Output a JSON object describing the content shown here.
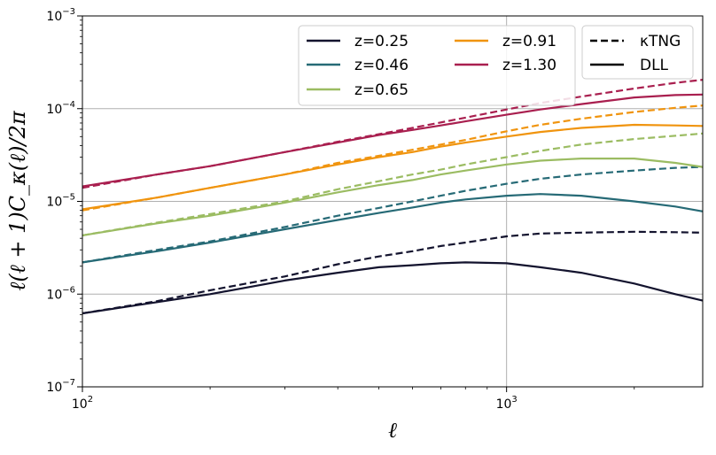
{
  "chart_data": {
    "type": "line",
    "xlabel": "ℓ",
    "ylabel": "ℓ(ℓ + 1)C_κ(ℓ)/2π",
    "xscale": "log",
    "yscale": "log",
    "xlim": [
      100,
      2900
    ],
    "ylim": [
      1e-07,
      0.001
    ],
    "grid": "major",
    "x_ticks": [
      {
        "value": 100,
        "base": "10",
        "exp": "2"
      },
      {
        "value": 1000,
        "base": "10",
        "exp": "3"
      }
    ],
    "y_ticks": [
      {
        "value": 1e-07,
        "base": "10",
        "exp": "−7"
      },
      {
        "value": 1e-06,
        "base": "10",
        "exp": "−6"
      },
      {
        "value": 1e-05,
        "base": "10",
        "exp": "−5"
      },
      {
        "value": 0.0001,
        "base": "10",
        "exp": "−4"
      },
      {
        "value": 0.001,
        "base": "10",
        "exp": "−3"
      }
    ],
    "legend_position": "top-right",
    "legend_redshift": [
      {
        "label": "z=0.25",
        "color": "#13132e"
      },
      {
        "label": "z=0.46",
        "color": "#266a76"
      },
      {
        "label": "z=0.65",
        "color": "#9bbc62"
      },
      {
        "label": "z=0.91",
        "color": "#f0940e"
      },
      {
        "label": "z=1.30",
        "color": "#a91f4f"
      }
    ],
    "legend_style": [
      {
        "label": "κTNG",
        "dash": "dashed"
      },
      {
        "label": "DLL",
        "dash": "solid"
      }
    ],
    "series": [
      {
        "z": "0.25",
        "model": "κTNG",
        "color": "#13132e",
        "dash": "dashed",
        "x": [
          100,
          150,
          200,
          300,
          400,
          500,
          600,
          700,
          800,
          1000,
          1200,
          1500,
          2000,
          2500,
          2900
        ],
        "y": [
          6.2e-07,
          8.4e-07,
          1.1e-06,
          1.55e-06,
          2.1e-06,
          2.55e-06,
          2.9e-06,
          3.3e-06,
          3.6e-06,
          4.2e-06,
          4.5e-06,
          4.6e-06,
          4.7e-06,
          4.65e-06,
          4.6e-06
        ]
      },
      {
        "z": "0.25",
        "model": "DLL",
        "color": "#13132e",
        "dash": "solid",
        "x": [
          100,
          150,
          200,
          300,
          400,
          500,
          600,
          700,
          800,
          1000,
          1200,
          1500,
          2000,
          2500,
          2900
        ],
        "y": [
          6.2e-07,
          8.2e-07,
          1e-06,
          1.4e-06,
          1.7e-06,
          1.95e-06,
          2.05e-06,
          2.15e-06,
          2.2e-06,
          2.15e-06,
          1.95e-06,
          1.7e-06,
          1.3e-06,
          1e-06,
          8.5e-07
        ]
      },
      {
        "z": "0.46",
        "model": "κTNG",
        "color": "#266a76",
        "dash": "dashed",
        "x": [
          100,
          150,
          200,
          300,
          400,
          500,
          600,
          700,
          800,
          1000,
          1200,
          1500,
          2000,
          2500,
          2900
        ],
        "y": [
          2.2e-06,
          3e-06,
          3.7e-06,
          5.3e-06,
          7e-06,
          8.5e-06,
          1e-05,
          1.15e-05,
          1.3e-05,
          1.55e-05,
          1.75e-05,
          1.95e-05,
          2.15e-05,
          2.3e-05,
          2.35e-05
        ]
      },
      {
        "z": "0.46",
        "model": "DLL",
        "color": "#266a76",
        "dash": "solid",
        "x": [
          100,
          150,
          200,
          300,
          400,
          500,
          600,
          700,
          800,
          1000,
          1200,
          1500,
          2000,
          2500,
          2900
        ],
        "y": [
          2.2e-06,
          2.9e-06,
          3.6e-06,
          5e-06,
          6.3e-06,
          7.5e-06,
          8.6e-06,
          9.7e-06,
          1.05e-05,
          1.15e-05,
          1.2e-05,
          1.15e-05,
          1e-05,
          8.8e-06,
          7.8e-06
        ]
      },
      {
        "z": "0.65",
        "model": "κTNG",
        "color": "#9bbc62",
        "dash": "dashed",
        "x": [
          100,
          150,
          200,
          300,
          400,
          500,
          600,
          700,
          800,
          1000,
          1200,
          1500,
          2000,
          2500,
          2900
        ],
        "y": [
          4.3e-06,
          5.9e-06,
          7.3e-06,
          1e-05,
          1.35e-05,
          1.65e-05,
          1.95e-05,
          2.2e-05,
          2.5e-05,
          3e-05,
          3.5e-05,
          4.1e-05,
          4.7e-05,
          5.1e-05,
          5.4e-05
        ]
      },
      {
        "z": "0.65",
        "model": "DLL",
        "color": "#9bbc62",
        "dash": "solid",
        "x": [
          100,
          150,
          200,
          300,
          400,
          500,
          600,
          700,
          800,
          1000,
          1200,
          1500,
          2000,
          2500,
          2900
        ],
        "y": [
          4.3e-06,
          5.8e-06,
          7e-06,
          9.7e-06,
          1.25e-05,
          1.5e-05,
          1.7e-05,
          1.95e-05,
          2.15e-05,
          2.5e-05,
          2.75e-05,
          2.9e-05,
          2.9e-05,
          2.6e-05,
          2.35e-05
        ]
      },
      {
        "z": "0.91",
        "model": "κTNG",
        "color": "#f0940e",
        "dash": "dashed",
        "x": [
          100,
          150,
          200,
          300,
          400,
          500,
          600,
          700,
          800,
          1000,
          1200,
          1500,
          2000,
          2500,
          2900
        ],
        "y": [
          8e-06,
          1.1e-05,
          1.4e-05,
          1.95e-05,
          2.6e-05,
          3.1e-05,
          3.6e-05,
          4.1e-05,
          4.6e-05,
          5.7e-05,
          6.7e-05,
          7.8e-05,
          9.2e-05,
          0.000102,
          0.000108
        ]
      },
      {
        "z": "0.91",
        "model": "DLL",
        "color": "#f0940e",
        "dash": "solid",
        "x": [
          100,
          150,
          200,
          300,
          400,
          500,
          600,
          700,
          800,
          1000,
          1200,
          1500,
          2000,
          2500,
          2900
        ],
        "y": [
          8.2e-06,
          1.1e-05,
          1.4e-05,
          1.95e-05,
          2.5e-05,
          3e-05,
          3.4e-05,
          3.9e-05,
          4.3e-05,
          5e-05,
          5.6e-05,
          6.2e-05,
          6.7e-05,
          6.6e-05,
          6.5e-05
        ]
      },
      {
        "z": "1.30",
        "model": "κTNG",
        "color": "#a91f4f",
        "dash": "dashed",
        "x": [
          100,
          150,
          200,
          300,
          400,
          500,
          600,
          700,
          800,
          1000,
          1200,
          1500,
          2000,
          2500,
          2900
        ],
        "y": [
          1.4e-05,
          1.95e-05,
          2.4e-05,
          3.4e-05,
          4.4e-05,
          5.3e-05,
          6.2e-05,
          7.1e-05,
          8e-05,
          9.8e-05,
          0.000115,
          0.000135,
          0.000165,
          0.00019,
          0.000205
        ]
      },
      {
        "z": "1.30",
        "model": "DLL",
        "color": "#a91f4f",
        "dash": "solid",
        "x": [
          100,
          150,
          200,
          300,
          400,
          500,
          600,
          700,
          800,
          1000,
          1200,
          1500,
          2000,
          2500,
          2900
        ],
        "y": [
          1.45e-05,
          1.95e-05,
          2.4e-05,
          3.4e-05,
          4.3e-05,
          5.2e-05,
          5.9e-05,
          6.6e-05,
          7.3e-05,
          8.6e-05,
          9.8e-05,
          0.000112,
          0.000132,
          0.00014,
          0.000142
        ]
      }
    ]
  }
}
